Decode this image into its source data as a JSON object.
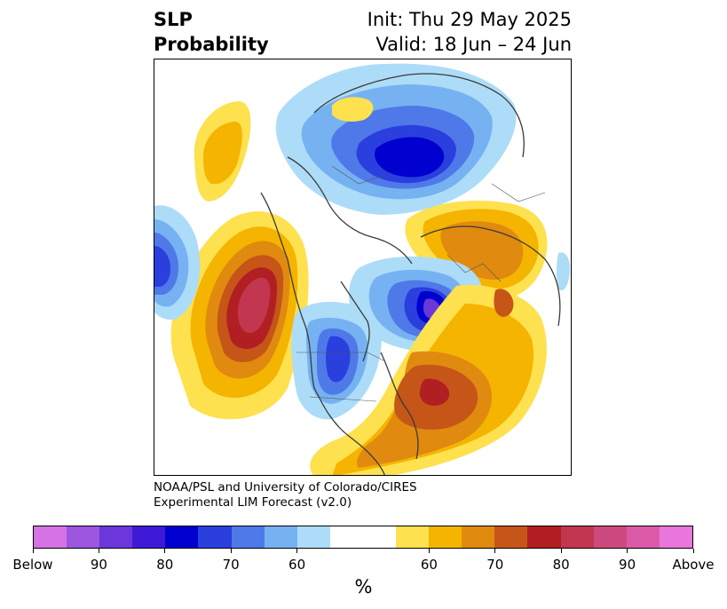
{
  "title": {
    "left_line1": "SLP",
    "left_line2": "Probability",
    "right_line1": "Init: Thu 29 May 2025",
    "right_line2": "Valid: 18 Jun – 24 Jun"
  },
  "credit": {
    "line1": "NOAA/PSL and University of Colorado/CIRES",
    "line2": "Experimental LIM Forecast (v2.0)"
  },
  "colorbar": {
    "unit": "%",
    "colors": [
      "#d672e6",
      "#9c56e0",
      "#6b37da",
      "#3e1ad6",
      "#0000cf",
      "#2a3fdd",
      "#4f79e8",
      "#76b2f2",
      "#addcf8",
      "#ffffff",
      "#ffffff",
      "#fee14e",
      "#f4b400",
      "#e08a10",
      "#c65518",
      "#b11f22",
      "#c23650",
      "#cc4a7e",
      "#db5aa8",
      "#e876db"
    ],
    "tick_labels": [
      "Below",
      "90",
      "80",
      "70",
      "60",
      "60",
      "70",
      "80",
      "90",
      "Above"
    ]
  }
}
